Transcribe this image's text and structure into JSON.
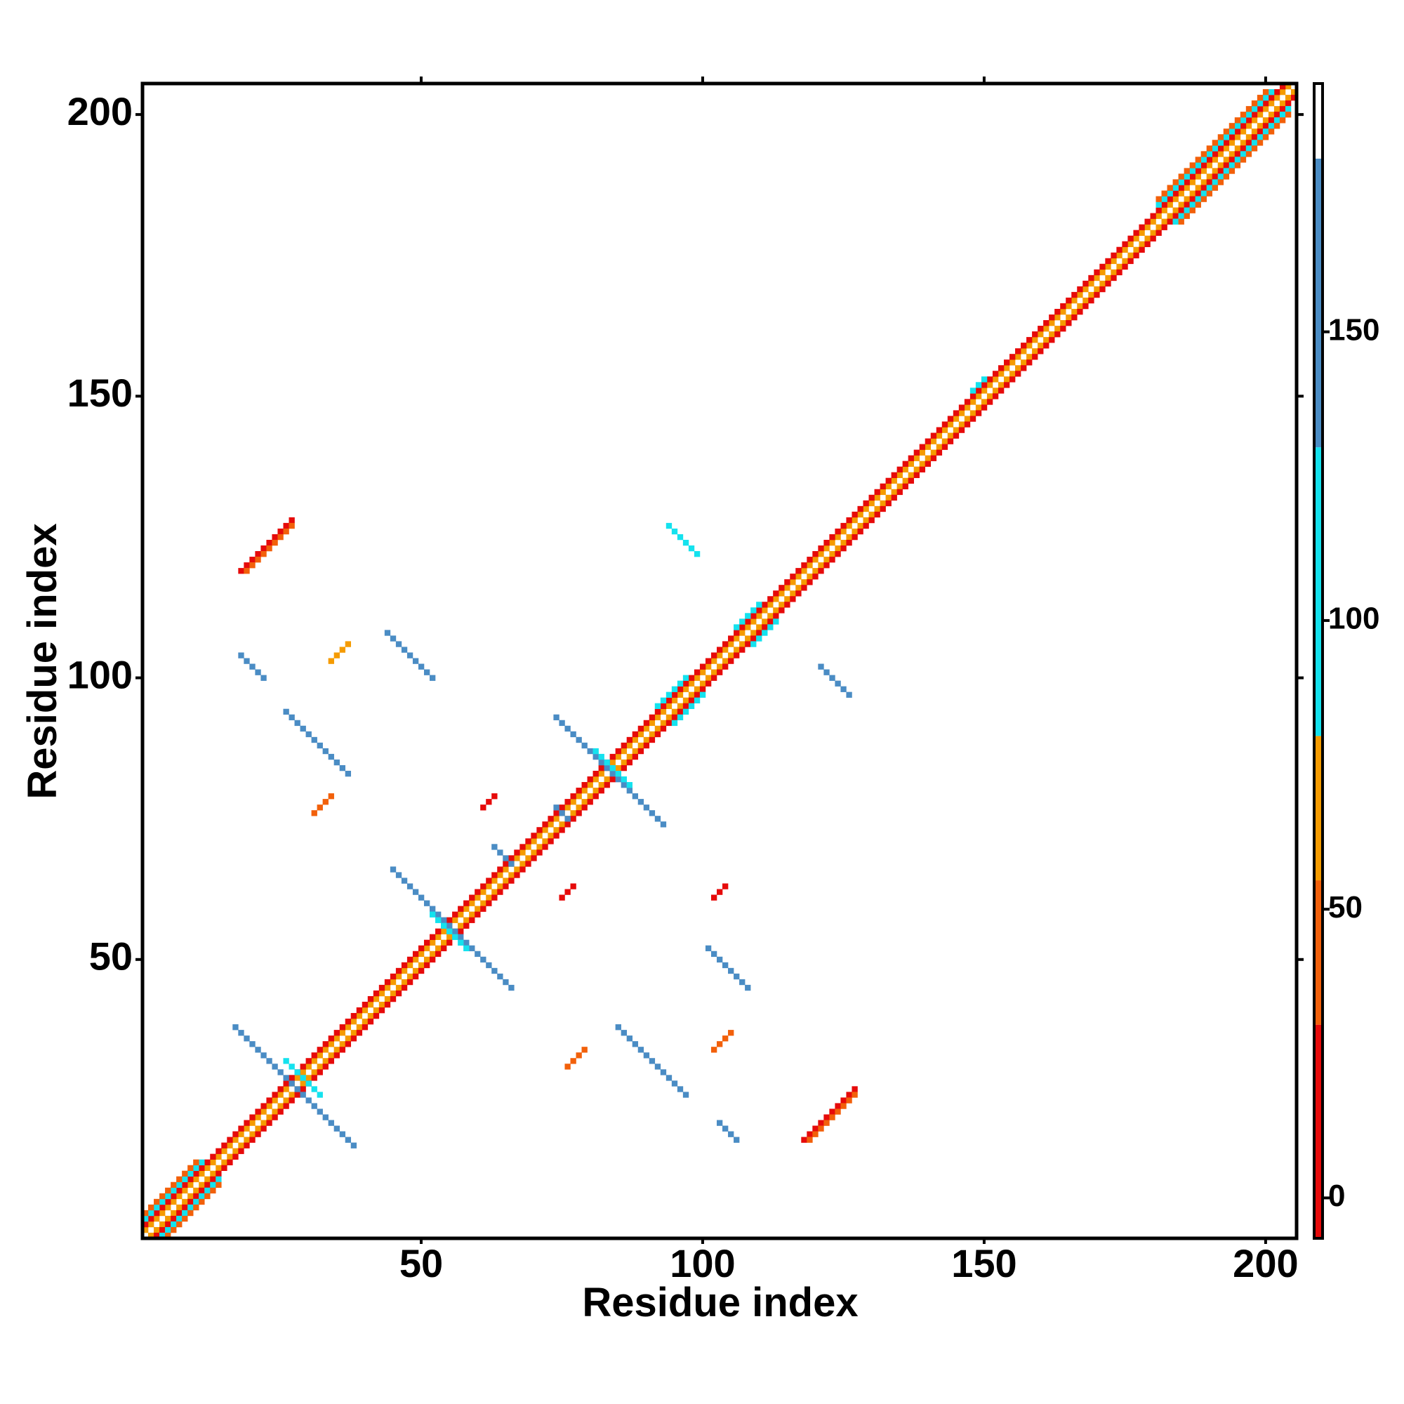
{
  "chart_data": {
    "type": "heatmap",
    "xlabel": "Residue index",
    "ylabel": "Residue index",
    "xlim": [
      0.5,
      205.5
    ],
    "ylim": [
      0.5,
      205.5
    ],
    "xticks": [
      50,
      100,
      150,
      200
    ],
    "yticks": [
      50,
      100,
      150,
      200
    ],
    "colorbar": {
      "lim": [
        -7,
        193
      ],
      "ticks": [
        0,
        50,
        100,
        150
      ],
      "bands": [
        {
          "from": -7,
          "to": 30,
          "color": "#e60a0a"
        },
        {
          "from": 30,
          "to": 55,
          "color": "#f2600a"
        },
        {
          "from": 55,
          "to": 80,
          "color": "#f59b00"
        },
        {
          "from": 80,
          "to": 130,
          "color": "#14e2ee"
        },
        {
          "from": 130,
          "to": 180,
          "color": "#4a8cc4"
        },
        {
          "from": 180,
          "to": 193,
          "color": "#ffffff"
        }
      ]
    },
    "strands": [
      {
        "x": 1,
        "y": 2,
        "n": 204,
        "slope": 1,
        "value": 68
      },
      {
        "x": 2,
        "y": 1,
        "n": 204,
        "slope": 1,
        "value": 68
      },
      {
        "x": 1,
        "y": 3,
        "n": 203,
        "slope": 1,
        "value": 15
      },
      {
        "x": 3,
        "y": 1,
        "n": 203,
        "slope": 1,
        "value": 15
      },
      {
        "x": 1,
        "y": 4,
        "n": 11,
        "slope": 1,
        "value": 105
      },
      {
        "x": 4,
        "y": 1,
        "n": 11,
        "slope": 1,
        "value": 105
      },
      {
        "x": 1,
        "y": 5,
        "n": 10,
        "slope": 1,
        "value": 43
      },
      {
        "x": 5,
        "y": 1,
        "n": 10,
        "slope": 1,
        "value": 43
      },
      {
        "x": 181,
        "y": 184,
        "n": 21,
        "slope": 1,
        "value": 105
      },
      {
        "x": 184,
        "y": 181,
        "n": 21,
        "slope": 1,
        "value": 105
      },
      {
        "x": 181,
        "y": 185,
        "n": 20,
        "slope": 1,
        "value": 43
      },
      {
        "x": 185,
        "y": 181,
        "n": 20,
        "slope": 1,
        "value": 43
      },
      {
        "x": 92,
        "y": 95,
        "n": 6,
        "slope": 1,
        "value": 105
      },
      {
        "x": 95,
        "y": 92,
        "n": 6,
        "slope": 1,
        "value": 105
      },
      {
        "x": 106,
        "y": 109,
        "n": 5,
        "slope": 1,
        "value": 105
      },
      {
        "x": 109,
        "y": 106,
        "n": 5,
        "slope": 1,
        "value": 105
      },
      {
        "x": 148,
        "y": 151,
        "n": 3,
        "slope": 1,
        "value": 105
      },
      {
        "x": 17,
        "y": 38,
        "n": 22,
        "slope": -1,
        "value": 155
      },
      {
        "x": 26,
        "y": 32,
        "n": 7,
        "slope": -1,
        "value": 105
      },
      {
        "x": 45,
        "y": 66,
        "n": 22,
        "slope": -1,
        "value": 155
      },
      {
        "x": 52,
        "y": 58,
        "n": 7,
        "slope": -1,
        "value": 105
      },
      {
        "x": 74,
        "y": 93,
        "n": 20,
        "slope": -1,
        "value": 155
      },
      {
        "x": 81,
        "y": 87,
        "n": 7,
        "slope": -1,
        "value": 105
      },
      {
        "x": 26,
        "y": 94,
        "n": 12,
        "slope": -1,
        "value": 155
      },
      {
        "x": 44,
        "y": 108,
        "n": 9,
        "slope": -1,
        "value": 155
      },
      {
        "x": 85,
        "y": 38,
        "n": 13,
        "slope": -1,
        "value": 155
      },
      {
        "x": 101,
        "y": 52,
        "n": 8,
        "slope": -1,
        "value": 155
      },
      {
        "x": 94,
        "y": 127,
        "n": 6,
        "slope": -1,
        "value": 105
      },
      {
        "x": 121,
        "y": 102,
        "n": 6,
        "slope": -1,
        "value": 155
      },
      {
        "x": 18,
        "y": 104,
        "n": 5,
        "slope": -1,
        "value": 155
      },
      {
        "x": 103,
        "y": 21,
        "n": 4,
        "slope": -1,
        "value": 155
      },
      {
        "x": 74,
        "y": 77,
        "n": 3,
        "slope": -1,
        "value": 155
      },
      {
        "x": 63,
        "y": 70,
        "n": 4,
        "slope": -1,
        "value": 155
      },
      {
        "x": 18,
        "y": 119,
        "n": 10,
        "slope": 1,
        "value": 15
      },
      {
        "x": 19,
        "y": 119,
        "n": 9,
        "slope": 1,
        "value": 43
      },
      {
        "x": 118,
        "y": 18,
        "n": 10,
        "slope": 1,
        "value": 15
      },
      {
        "x": 119,
        "y": 18,
        "n": 9,
        "slope": 1,
        "value": 43
      },
      {
        "x": 34,
        "y": 103,
        "n": 4,
        "slope": 1,
        "value": 68
      },
      {
        "x": 31,
        "y": 76,
        "n": 4,
        "slope": 1,
        "value": 43
      },
      {
        "x": 76,
        "y": 31,
        "n": 4,
        "slope": 1,
        "value": 43
      },
      {
        "x": 102,
        "y": 34,
        "n": 4,
        "slope": 1,
        "value": 43
      },
      {
        "x": 61,
        "y": 77,
        "n": 3,
        "slope": 1,
        "value": 15
      },
      {
        "x": 75,
        "y": 61,
        "n": 3,
        "slope": 1,
        "value": 15
      },
      {
        "x": 102,
        "y": 61,
        "n": 3,
        "slope": 1,
        "value": 15
      }
    ]
  }
}
